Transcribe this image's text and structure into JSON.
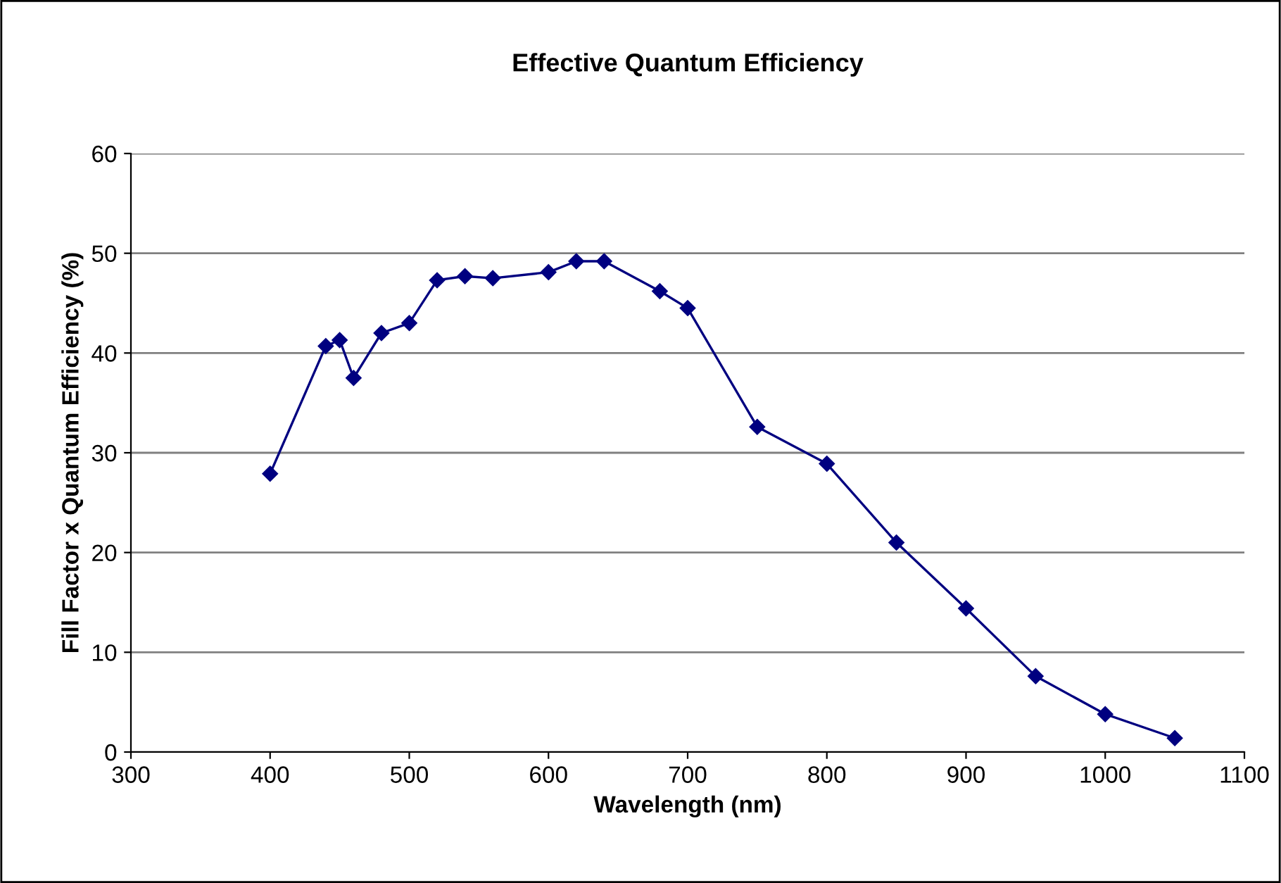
{
  "chart_data": {
    "type": "line",
    "title": "Effective Quantum Efficiency",
    "xlabel": "Wavelength (nm)",
    "ylabel": "Fill Factor x Quantum Efficiency (%)",
    "x": [
      400,
      440,
      450,
      460,
      480,
      500,
      520,
      540,
      560,
      600,
      620,
      640,
      680,
      700,
      750,
      800,
      850,
      900,
      950,
      1000,
      1050
    ],
    "series": [
      {
        "color": "#000080",
        "values": [
          27.9,
          40.7,
          41.3,
          37.5,
          42.0,
          43.0,
          47.3,
          47.7,
          47.5,
          48.1,
          49.2,
          49.2,
          46.2,
          44.5,
          32.6,
          28.9,
          21.0,
          14.4,
          7.6,
          3.8,
          1.4
        ]
      }
    ],
    "xlim": [
      300,
      1100
    ],
    "xticks": [
      300,
      400,
      500,
      600,
      700,
      800,
      900,
      1000,
      1100
    ],
    "ylim": [
      0,
      60
    ],
    "yticks": [
      0,
      10,
      20,
      30,
      40,
      50,
      60
    ],
    "grid": "y",
    "marker": "diamond",
    "line_style": "solid",
    "legend": false
  }
}
